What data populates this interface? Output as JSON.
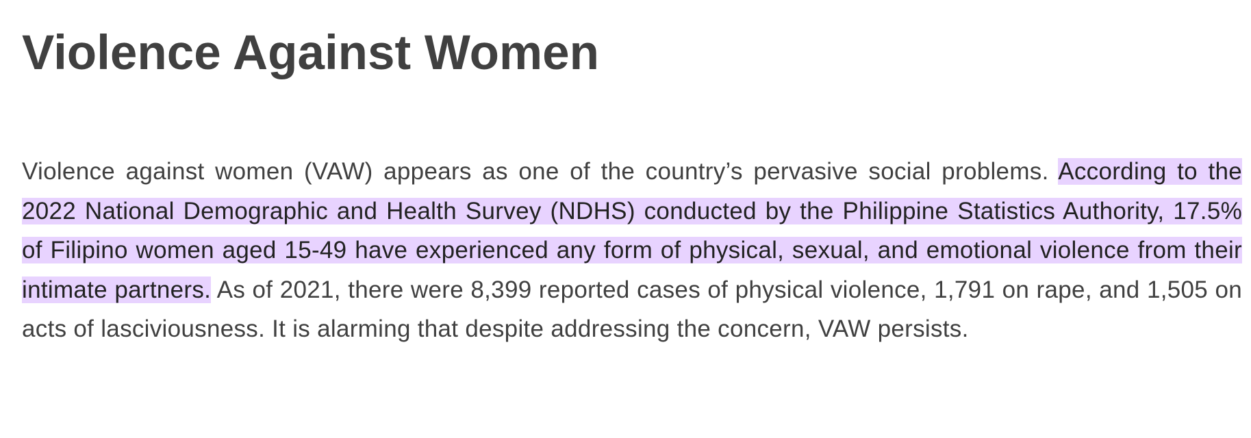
{
  "document": {
    "title": "Violence Against Women",
    "paragraph": {
      "sentence_1": "Violence against women (VAW) appears as one of the country’s pervasive social problems. ",
      "sentence_2_highlighted": "According to the 2022 National Demographic and Health Survey (NDHS) conducted by the Philippine Statistics Authority, 17.5% of Filipino women aged 15-49 have experienced any form of physical, sexual, and emotional violence from their intimate partners.",
      "sentence_3": " As of 2021, there were 8,399 reported cases of physical violence, 1,791 on rape, and 1,505 on acts of lasciviousness. It is alarming that despite addressing the concern, VAW persists."
    },
    "colors": {
      "text": "#404040",
      "highlight": "#e8d3ff"
    }
  }
}
